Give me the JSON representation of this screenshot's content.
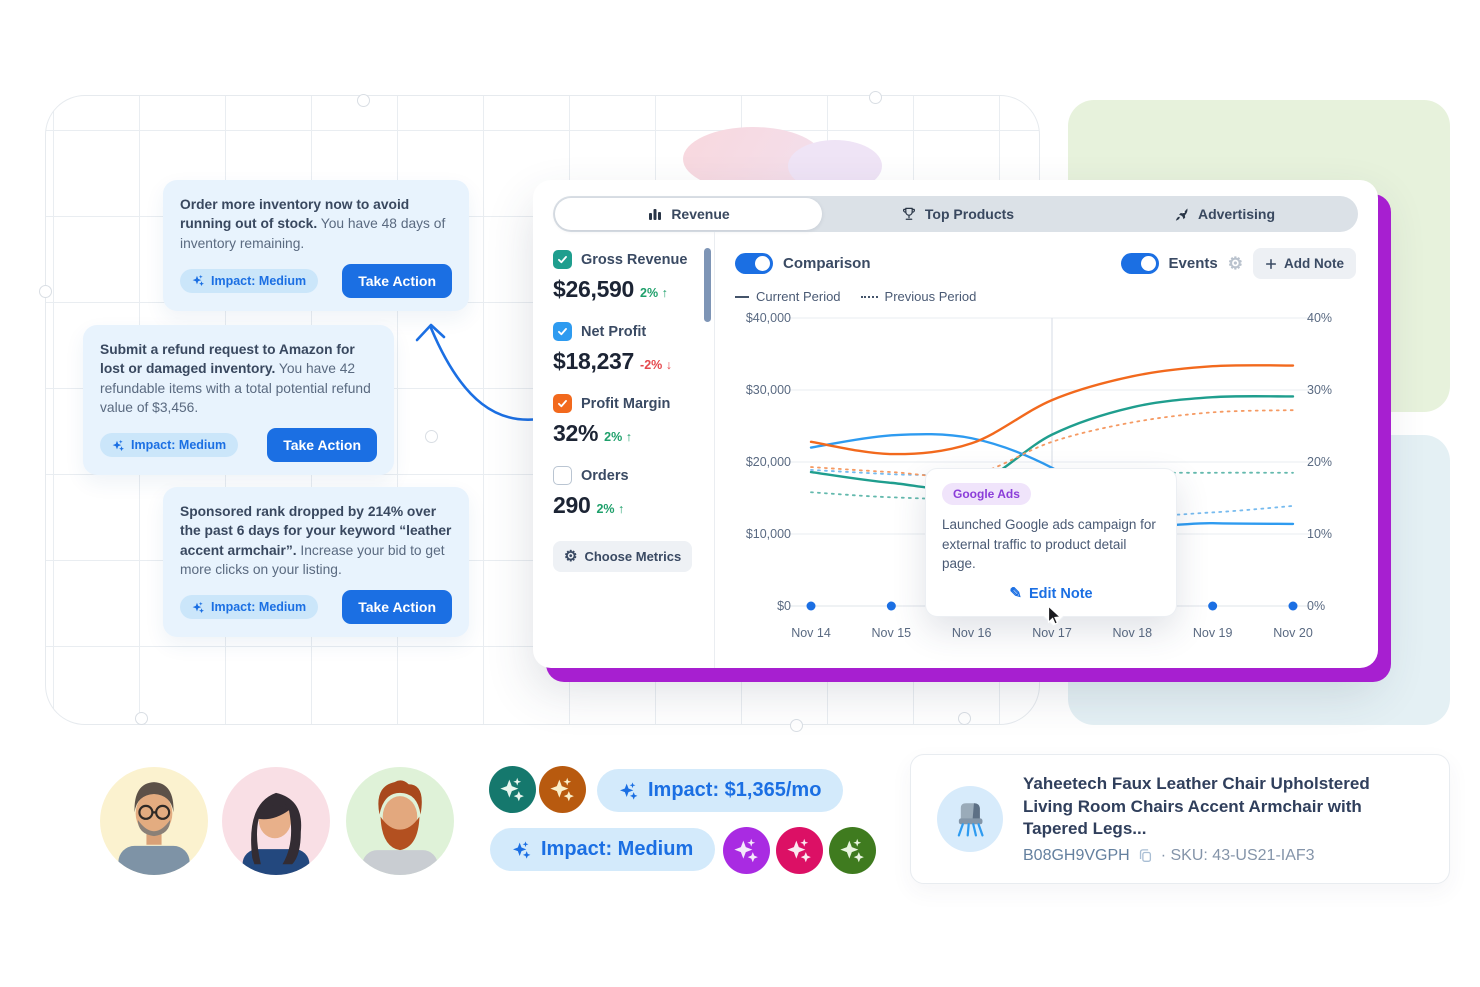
{
  "colors": {
    "accent_blue": "#1b6fe3",
    "purple_shadow": "#a71fd0",
    "teal": "#1f9e8e",
    "blue": "#2e9bf0",
    "orange": "#f2691d",
    "green_up": "#1fa06b",
    "red_down": "#e5484d",
    "card_bg": "#e8f3fd",
    "impact_pill_bg": "#cbe6fa"
  },
  "cards": [
    {
      "bold": "Order more inventory now to avoid running out of stock.",
      "rest": " You have 48 days of inventory remaining.",
      "impact": "Impact: Medium",
      "action": "Take Action"
    },
    {
      "bold": "Submit a refund request to Amazon for lost or damaged inventory.",
      "rest": " You have 42 refundable items with a total potential refund value of $3,456.",
      "impact": "Impact: Medium",
      "action": "Take Action"
    },
    {
      "bold": "Sponsored rank dropped by 214% over the past 6 days for your keyword “leather accent armchair”.",
      "rest": " Increase your bid to get more clicks on your listing.",
      "impact": "Impact: Medium",
      "action": "Take Action"
    }
  ],
  "dashboard": {
    "tabs": [
      {
        "label": "Revenue",
        "icon": "bar-chart-icon",
        "active": true
      },
      {
        "label": "Top Products",
        "icon": "trophy-icon",
        "active": false
      },
      {
        "label": "Advertising",
        "icon": "rocket-icon",
        "active": false
      }
    ],
    "metrics": [
      {
        "label": "Gross Revenue",
        "value": "$26,590",
        "delta": "2%",
        "arrow": "↑",
        "dir": "up",
        "checked": true,
        "color": "#1f9e8e"
      },
      {
        "label": "Net Profit",
        "value": "$18,237",
        "delta": "-2%",
        "arrow": "↓",
        "dir": "down",
        "checked": true,
        "color": "#2e9bf0"
      },
      {
        "label": "Profit Margin",
        "value": "32%",
        "delta": "2%",
        "arrow": "↑",
        "dir": "up",
        "checked": true,
        "color": "#f2691d"
      },
      {
        "label": "Orders",
        "value": "290",
        "delta": "2%",
        "arrow": "↑",
        "dir": "up",
        "checked": false,
        "color": ""
      }
    ],
    "choose_metrics": "Choose Metrics",
    "comparison_label": "Comparison",
    "legend": {
      "current": "Current Period",
      "previous": "Previous Period"
    },
    "events_label": "Events",
    "add_note": "Add Note",
    "tooltip": {
      "badge": "Google Ads",
      "text": "Launched Google ads campaign for external traffic to product detail page.",
      "action": "Edit Note"
    }
  },
  "chart_data": {
    "type": "line",
    "x": [
      "Nov 14",
      "Nov 15",
      "Nov 16",
      "Nov 17",
      "Nov 18",
      "Nov 19",
      "Nov 20"
    ],
    "left_axis": {
      "ticks": [
        "$0",
        "$10,000",
        "$20,000",
        "$30,000",
        "$40,000"
      ],
      "range": [
        0,
        40000
      ]
    },
    "right_axis": {
      "ticks": [
        "0%",
        "10%",
        "20%",
        "30%",
        "40%"
      ],
      "range": [
        0,
        40
      ]
    },
    "grid": true,
    "highlight_x": "Nov 17",
    "series": [
      {
        "name": "Gross Revenue (Current Period)",
        "color": "#1f9e8e",
        "style": "solid",
        "axis": "left",
        "values": [
          18600,
          17100,
          16700,
          23800,
          27600,
          29000,
          29100
        ]
      },
      {
        "name": "Gross Revenue (Previous Period)",
        "color": "#63b9ad",
        "style": "dashed",
        "axis": "left",
        "values": [
          15800,
          15100,
          15000,
          16600,
          18300,
          18500,
          18500
        ]
      },
      {
        "name": "Net Profit (Current Period)",
        "color": "#2e9bf0",
        "style": "solid",
        "axis": "left",
        "values": [
          22000,
          23700,
          23300,
          19200,
          11900,
          11500,
          11400
        ]
      },
      {
        "name": "Net Profit (Previous Period)",
        "color": "#77bbef",
        "style": "dashed",
        "axis": "left",
        "values": [
          18900,
          18300,
          17800,
          15000,
          12700,
          13000,
          13900
        ]
      },
      {
        "name": "Profit Margin (Current Period)",
        "color": "#f2691d",
        "style": "solid",
        "axis": "right",
        "values": [
          22.8,
          21.1,
          22.6,
          28.6,
          31.9,
          33.3,
          33.4
        ]
      },
      {
        "name": "Profit Margin (Previous Period)",
        "color": "#f59a63",
        "style": "dashed",
        "axis": "right",
        "values": [
          19.3,
          18.6,
          18.2,
          22.8,
          25.5,
          26.9,
          27.2
        ]
      }
    ],
    "events": {
      "dates": [
        "Nov 14",
        "Nov 15",
        "Nov 16",
        "Nov 17",
        "Nov 18",
        "Nov 19",
        "Nov 20"
      ],
      "color": "#1b6fe3"
    }
  },
  "badges": {
    "impact_money": "Impact: $1,365/mo",
    "impact_medium": "Impact: Medium"
  },
  "sparkle_circles": {
    "row1": [
      {
        "bg": "#15786d",
        "fg": "#e8f6ee"
      },
      {
        "bg": "#b85a0f",
        "fg": "#faefc9"
      }
    ],
    "row2": [
      {
        "bg": "#a92be2",
        "fg": "#f4e9fb"
      },
      {
        "bg": "#dc1065",
        "fg": "#fbe9f1"
      },
      {
        "bg": "#3f7b1f",
        "fg": "#e9f5e0"
      }
    ]
  },
  "avatars": [
    {
      "name": "man with glasses",
      "bg": "#fbf2cf"
    },
    {
      "name": "woman with dark hair",
      "bg": "#f9dfe5"
    },
    {
      "name": "man with red beard",
      "bg": "#dff2d8"
    }
  ],
  "product": {
    "title": "Yaheetech Faux Leather Chair Upholstered Living Room Chairs Accent Armchair with Tapered Legs...",
    "asin": "B08GH9VGPH",
    "dot": "·",
    "sku": "SKU: 43-US21-IAF3"
  }
}
